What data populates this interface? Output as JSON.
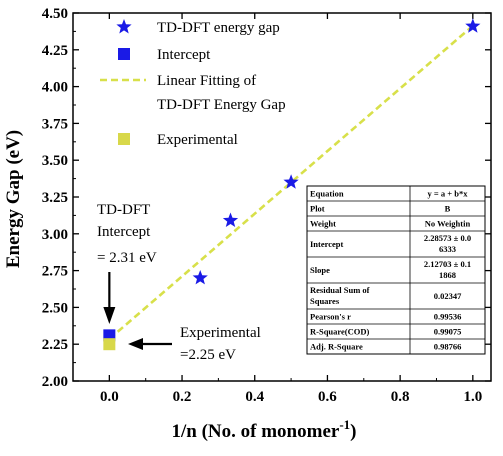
{
  "chart_data": {
    "type": "scatter",
    "xlabel": "1/n (No. of monomer",
    "xlabel_sup": "-1",
    "xlabel_close": ")",
    "ylabel": "Energy Gap (eV)",
    "xlim": [
      -0.1,
      1.05
    ],
    "ylim": [
      2.0,
      4.5
    ],
    "x_ticks": [
      "0.0",
      "0.2",
      "0.4",
      "0.6",
      "0.8",
      "1.0"
    ],
    "y_ticks": [
      "2.00",
      "2.25",
      "2.50",
      "2.75",
      "3.00",
      "3.25",
      "3.50",
      "3.75",
      "4.00",
      "4.25",
      "4.50"
    ],
    "series": [
      {
        "name": "TD-DFT energy gap",
        "marker": "star",
        "color": "#1a1ae6",
        "x": [
          1.0,
          0.5,
          0.3333,
          0.25
        ],
        "y": [
          4.41,
          3.35,
          3.09,
          2.7
        ]
      },
      {
        "name": "Intercept",
        "marker": "square",
        "color": "#1a1ae6",
        "x": [
          0.0
        ],
        "y": [
          2.31
        ]
      },
      {
        "name": "Linear Fitting of\nTD-DFT Energy Gap",
        "marker": "dash-line",
        "color": "#d8e04a",
        "x": [
          0.0,
          1.0
        ],
        "y": [
          2.28573,
          4.41276
        ]
      },
      {
        "name": "Experimental",
        "marker": "square",
        "color": "#d8d84a",
        "x": [
          0.0
        ],
        "y": [
          2.25
        ]
      }
    ],
    "legend_position": "top-left",
    "annotations": [
      {
        "lines": [
          "TD-DFT",
          "Intercept",
          "= 2.31 eV"
        ],
        "points_to": [
          0.0,
          2.31
        ]
      },
      {
        "lines": [
          "Experimental",
          "=2.25 eV"
        ],
        "points_to": [
          0.0,
          2.25
        ]
      }
    ],
    "fit_table": [
      [
        "Equation",
        "y = a + b*x"
      ],
      [
        "Plot",
        "B"
      ],
      [
        "Weight",
        "No Weightin"
      ],
      [
        "Intercept",
        "2.28573 ± 0.0\n6333"
      ],
      [
        "Slope",
        "2.12703 ± 0.1\n1868"
      ],
      [
        "Residual Sum of\nSquares",
        "0.02347"
      ],
      [
        "Pearson's r",
        "0.99536"
      ],
      [
        "R-Square(COD)",
        "0.99075"
      ],
      [
        "Adj. R-Square",
        "0.98766"
      ]
    ]
  }
}
